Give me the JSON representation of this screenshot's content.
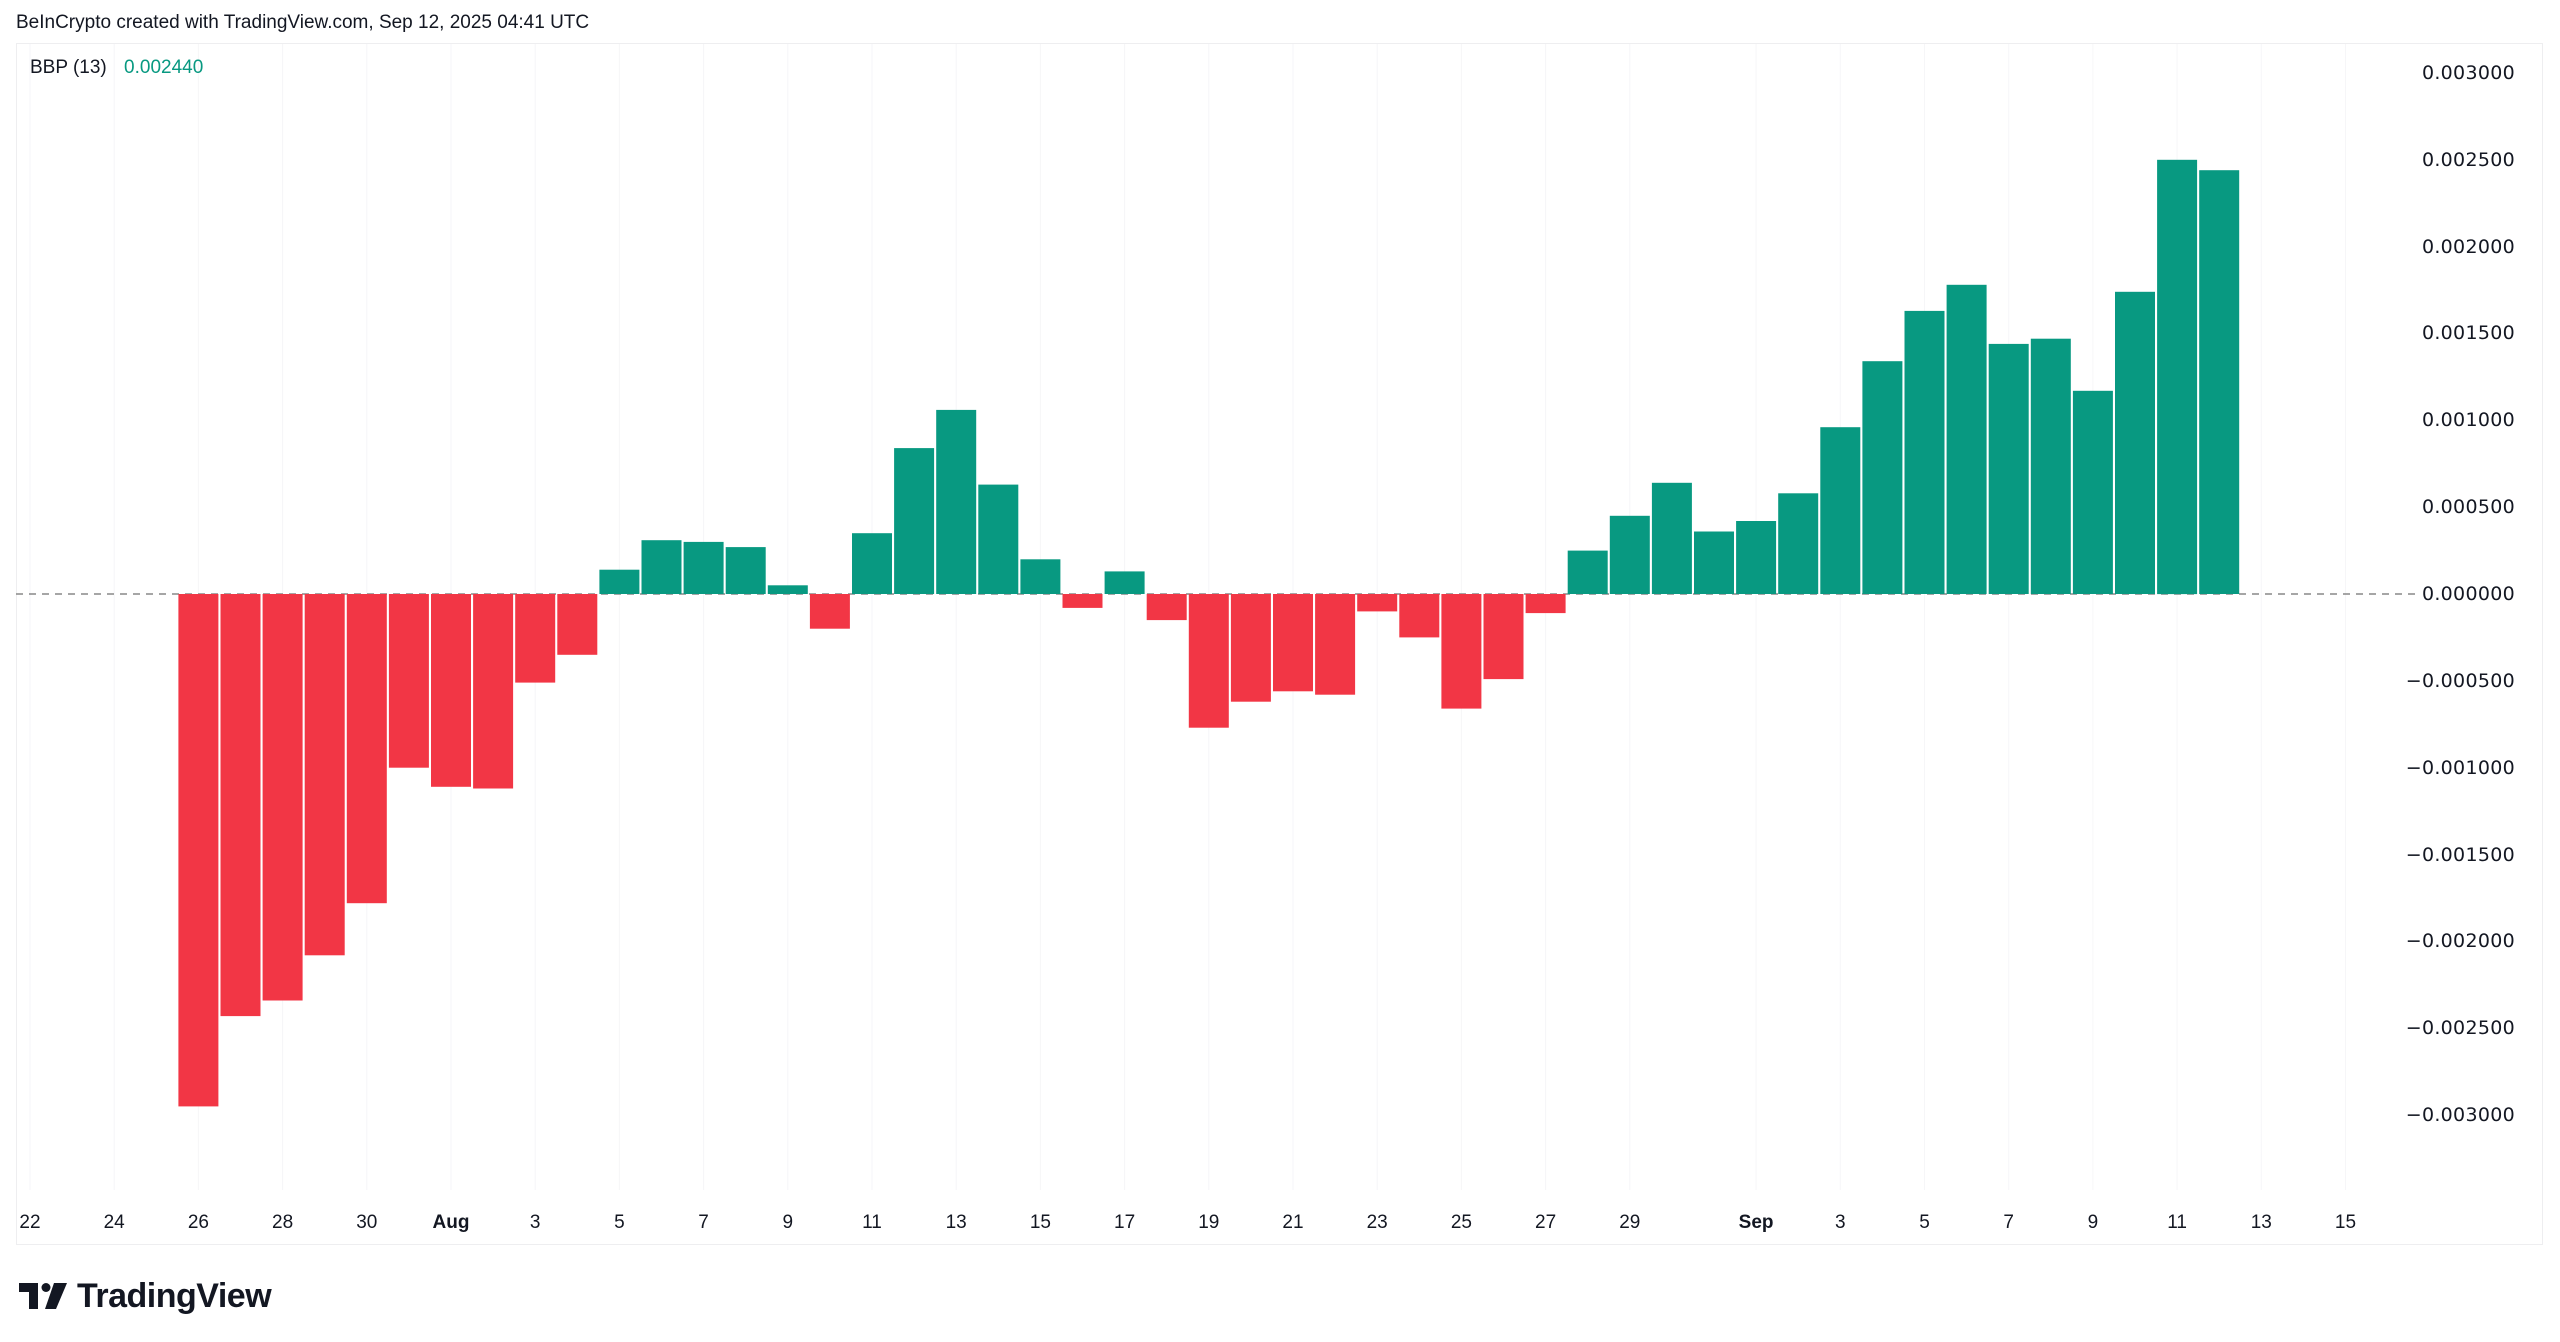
{
  "header": {
    "attribution": "BeInCrypto created with TradingView.com, Sep 12, 2025 04:41 UTC"
  },
  "legend": {
    "indicator": "BBP (13)",
    "value": "0.002440"
  },
  "branding": {
    "logo_text": "TradingView",
    "logo_icon": "tradingview-logo-icon"
  },
  "colors": {
    "positive": "#089981",
    "negative": "#F23645",
    "zero_line": "#888888",
    "text": "#131722"
  },
  "chart_data": {
    "type": "bar",
    "title": "BBP (13)",
    "subtitle": "Bull Bear Power histogram",
    "xlabel": "",
    "ylabel": "",
    "ylim": [
      -0.0033,
      0.003
    ],
    "grid": false,
    "legend_position": "top-left",
    "current_value": 0.00244,
    "y_ticks": [
      "0.003000",
      "0.002500",
      "0.002000",
      "0.001500",
      "0.001000",
      "0.000500",
      "0.000000",
      "−0.000500",
      "−0.001000",
      "−0.001500",
      "−0.002000",
      "−0.002500",
      "−0.003000"
    ],
    "y_tick_values": [
      0.003,
      0.0025,
      0.002,
      0.0015,
      0.001,
      0.0005,
      0,
      -0.0005,
      -0.001,
      -0.0015,
      -0.002,
      -0.0025,
      -0.003
    ],
    "x_ticks": [
      {
        "label": "22",
        "day": 0
      },
      {
        "label": "24",
        "day": 2
      },
      {
        "label": "26",
        "day": 4
      },
      {
        "label": "28",
        "day": 6
      },
      {
        "label": "30",
        "day": 8
      },
      {
        "label": "Aug",
        "day": 10,
        "bold": true
      },
      {
        "label": "3",
        "day": 12
      },
      {
        "label": "5",
        "day": 14
      },
      {
        "label": "7",
        "day": 16
      },
      {
        "label": "9",
        "day": 18
      },
      {
        "label": "11",
        "day": 20
      },
      {
        "label": "13",
        "day": 22
      },
      {
        "label": "15",
        "day": 24
      },
      {
        "label": "17",
        "day": 26
      },
      {
        "label": "19",
        "day": 28
      },
      {
        "label": "21",
        "day": 30
      },
      {
        "label": "23",
        "day": 32
      },
      {
        "label": "25",
        "day": 34
      },
      {
        "label": "27",
        "day": 36
      },
      {
        "label": "29",
        "day": 38
      },
      {
        "label": "Sep",
        "day": 41,
        "bold": true
      },
      {
        "label": "3",
        "day": 43
      },
      {
        "label": "5",
        "day": 45
      },
      {
        "label": "7",
        "day": 47
      },
      {
        "label": "9",
        "day": 49
      },
      {
        "label": "11",
        "day": 51
      },
      {
        "label": "13",
        "day": 53
      },
      {
        "label": "15",
        "day": 55
      }
    ],
    "categories": [
      "Jul 26",
      "Jul 27",
      "Jul 28",
      "Jul 29",
      "Jul 30",
      "Jul 31",
      "Aug 1",
      "Aug 2",
      "Aug 3",
      "Aug 4",
      "Aug 5",
      "Aug 6",
      "Aug 7",
      "Aug 8",
      "Aug 9",
      "Aug 10",
      "Aug 11",
      "Aug 12",
      "Aug 13",
      "Aug 14",
      "Aug 15",
      "Aug 16",
      "Aug 17",
      "Aug 18",
      "Aug 19",
      "Aug 20",
      "Aug 21",
      "Aug 22",
      "Aug 23",
      "Aug 24",
      "Aug 25",
      "Aug 26",
      "Aug 27",
      "Aug 28",
      "Aug 29",
      "Aug 30",
      "Aug 31",
      "Sep 1",
      "Sep 2",
      "Sep 3",
      "Sep 4",
      "Sep 5",
      "Sep 6",
      "Sep 7",
      "Sep 8",
      "Sep 9",
      "Sep 10",
      "Sep 11",
      "Sep 12"
    ],
    "first_day_index": 4,
    "values": [
      -0.00295,
      -0.00243,
      -0.00234,
      -0.00208,
      -0.00178,
      -0.001,
      -0.00111,
      -0.00112,
      -0.00051,
      -0.00035,
      0.00014,
      0.00031,
      0.0003,
      0.00027,
      5e-05,
      -0.0002,
      0.00035,
      0.00084,
      0.00106,
      0.00063,
      0.0002,
      -8e-05,
      0.00013,
      -0.00015,
      -0.00077,
      -0.00062,
      -0.00056,
      -0.00058,
      -0.0001,
      -0.00025,
      -0.00066,
      -0.00049,
      -0.00011,
      0.00025,
      0.00045,
      0.00064,
      0.00036,
      0.00042,
      0.00058,
      0.00096,
      0.00134,
      0.00163,
      0.00178,
      0.00144,
      0.00147,
      0.00117,
      0.00174,
      0.0025,
      0.00244
    ]
  }
}
